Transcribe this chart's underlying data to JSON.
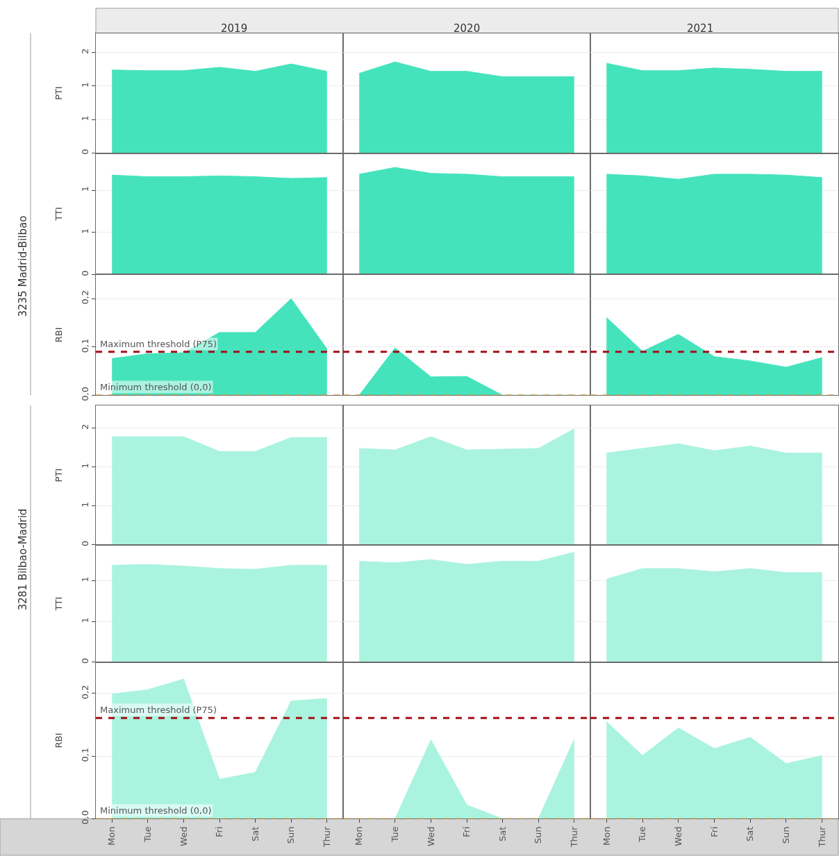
{
  "chart_data": [
    {
      "type": "area",
      "title": "2019",
      "ylabel": "PTI",
      "categories": [
        "Mon",
        "Tue",
        "Wed",
        "Fri",
        "Sat",
        "Sun",
        "Thur"
      ],
      "values": [
        1.24,
        1.23,
        1.23,
        1.28,
        1.22,
        1.33,
        1.22
      ],
      "color": "#45e3bc",
      "ylim": [
        0,
        1.79
      ],
      "yticks": [
        {
          "value": 0,
          "label": "0"
        },
        {
          "value": 0.5,
          "label": "1"
        },
        {
          "value": 1,
          "label": "1"
        },
        {
          "value": 1.5,
          "label": "2"
        }
      ],
      "grid": "y",
      "tick_labels": "y"
    },
    {
      "type": "area",
      "title": "2020",
      "categories": [
        "Mon",
        "Tue",
        "Wed",
        "Fri",
        "Sat",
        "Sun",
        "Thur"
      ],
      "values": [
        1.19,
        1.36,
        1.22,
        1.22,
        1.14,
        1.14,
        1.14
      ],
      "color": "#45e3bc",
      "ylim": [
        0,
        1.79
      ],
      "yticks": [
        {
          "value": 0,
          "label": "0"
        },
        {
          "value": 0.5,
          "label": "1"
        },
        {
          "value": 1,
          "label": "1"
        },
        {
          "value": 1.5,
          "label": "2"
        }
      ],
      "grid": "y",
      "tick_labels": false
    },
    {
      "type": "area",
      "title": "2021",
      "categories": [
        "Mon",
        "Tue",
        "Wed",
        "Fri",
        "Sat",
        "Sun",
        "Thur"
      ],
      "values": [
        1.34,
        1.23,
        1.23,
        1.27,
        1.25,
        1.22,
        1.22
      ],
      "color": "#45e3bc",
      "ylim": [
        0,
        1.79
      ],
      "yticks": [
        {
          "value": 0,
          "label": "0"
        },
        {
          "value": 0.5,
          "label": "1"
        },
        {
          "value": 1,
          "label": "1"
        },
        {
          "value": 1.5,
          "label": "2"
        }
      ],
      "grid": "y",
      "tick_labels": false
    },
    {
      "type": "area",
      "ylabel": "TTI",
      "annotations": [
        "3235 Madrid-Bilbao"
      ],
      "categories": [
        "Mon",
        "Tue",
        "Wed",
        "Fri",
        "Sat",
        "Sun",
        "Thur"
      ],
      "values": [
        1.18,
        1.16,
        1.16,
        1.17,
        1.16,
        1.14,
        1.15
      ],
      "color": "#45e3bc",
      "ylim": [
        0,
        1.44
      ],
      "yticks": [
        {
          "value": 0,
          "label": "0"
        },
        {
          "value": 0.5,
          "label": "1"
        },
        {
          "value": 1,
          "label": "1"
        }
      ],
      "grid": "y",
      "tick_labels": "y"
    },
    {
      "type": "area",
      "categories": [
        "Mon",
        "Tue",
        "Wed",
        "Fri",
        "Sat",
        "Sun",
        "Thur"
      ],
      "values": [
        1.19,
        1.27,
        1.2,
        1.19,
        1.16,
        1.16,
        1.16
      ],
      "color": "#45e3bc",
      "ylim": [
        0,
        1.44
      ],
      "yticks": [
        {
          "value": 0,
          "label": "0"
        },
        {
          "value": 0.5,
          "label": "1"
        },
        {
          "value": 1,
          "label": "1"
        }
      ],
      "grid": "y",
      "tick_labels": false
    },
    {
      "type": "area",
      "categories": [
        "Mon",
        "Tue",
        "Wed",
        "Fri",
        "Sat",
        "Sun",
        "Thur"
      ],
      "values": [
        1.19,
        1.17,
        1.13,
        1.19,
        1.19,
        1.18,
        1.15
      ],
      "color": "#45e3bc",
      "ylim": [
        0,
        1.44
      ],
      "yticks": [
        {
          "value": 0,
          "label": "0"
        },
        {
          "value": 0.5,
          "label": "1"
        },
        {
          "value": 1,
          "label": "1"
        }
      ],
      "grid": "y",
      "tick_labels": false
    },
    {
      "type": "area",
      "ylabel": "RBI",
      "categories": [
        "Mon",
        "Tue",
        "Wed",
        "Fri",
        "Sat",
        "Sun",
        "Thur"
      ],
      "values": [
        0.076,
        0.086,
        0.088,
        0.13,
        0.13,
        0.2,
        0.096
      ],
      "color": "#45e3bc",
      "ylim": [
        0,
        0.25
      ],
      "yticks": [
        {
          "value": 0,
          "label": "0,0"
        },
        {
          "value": 0.1,
          "label": "0,1"
        },
        {
          "value": 0.2,
          "label": "0,2"
        }
      ],
      "grid": "y",
      "tick_labels": "y",
      "ref_lines": [
        {
          "axis": "y",
          "value": 0.09,
          "label": "Maximum threshold (P75)",
          "color": "#a50f15",
          "line_style": "dashed"
        },
        {
          "axis": "y",
          "value": 0,
          "label": "Minimum threshold (0,0)",
          "color": "#d9a441",
          "line_style": "dashed"
        }
      ]
    },
    {
      "type": "area",
      "categories": [
        "Mon",
        "Tue",
        "Wed",
        "Fri",
        "Sat",
        "Sun",
        "Thur"
      ],
      "values": [
        0,
        0.098,
        0.038,
        0.039,
        0,
        0,
        0
      ],
      "color": "#45e3bc",
      "ylim": [
        0,
        0.25
      ],
      "yticks": [
        {
          "value": 0,
          "label": "0,0"
        },
        {
          "value": 0.1,
          "label": "0,1"
        },
        {
          "value": 0.2,
          "label": "0,2"
        }
      ],
      "grid": "y",
      "tick_labels": false,
      "ref_lines": [
        {
          "axis": "y",
          "value": 0.09,
          "color": "#a50f15",
          "line_style": "dashed"
        },
        {
          "axis": "y",
          "value": 0,
          "color": "#d9a441",
          "line_style": "dashed"
        }
      ]
    },
    {
      "type": "area",
      "categories": [
        "Mon",
        "Tue",
        "Wed",
        "Fri",
        "Sat",
        "Sun",
        "Thur"
      ],
      "values": [
        0.161,
        0.091,
        0.126,
        0.08,
        0.071,
        0.058,
        0.078
      ],
      "color": "#45e3bc",
      "ylim": [
        0,
        0.25
      ],
      "yticks": [
        {
          "value": 0,
          "label": "0,0"
        },
        {
          "value": 0.1,
          "label": "0,1"
        },
        {
          "value": 0.2,
          "label": "0,2"
        }
      ],
      "grid": "y",
      "tick_labels": false,
      "ref_lines": [
        {
          "axis": "y",
          "value": 0.09,
          "color": "#a50f15",
          "line_style": "dashed"
        },
        {
          "axis": "y",
          "value": 0,
          "color": "#d9a441",
          "line_style": "dashed"
        }
      ]
    },
    {
      "type": "area",
      "ylabel": "PTI",
      "categories": [
        "Mon",
        "Tue",
        "Wed",
        "Fri",
        "Sat",
        "Sun",
        "Thur"
      ],
      "values": [
        1.39,
        1.39,
        1.39,
        1.2,
        1.2,
        1.38,
        1.38
      ],
      "color": "#aaf3df",
      "ylim": [
        0,
        1.79
      ],
      "yticks": [
        {
          "value": 0,
          "label": "0"
        },
        {
          "value": 0.5,
          "label": "1"
        },
        {
          "value": 1,
          "label": "1"
        },
        {
          "value": 1.5,
          "label": "2"
        }
      ],
      "grid": "y",
      "tick_labels": "y"
    },
    {
      "type": "area",
      "categories": [
        "Mon",
        "Tue",
        "Wed",
        "Fri",
        "Sat",
        "Sun",
        "Thur"
      ],
      "values": [
        1.24,
        1.22,
        1.39,
        1.22,
        1.23,
        1.24,
        1.49
      ],
      "color": "#aaf3df",
      "ylim": [
        0,
        1.79
      ],
      "yticks": [
        {
          "value": 0,
          "label": "0"
        },
        {
          "value": 0.5,
          "label": "1"
        },
        {
          "value": 1,
          "label": "1"
        },
        {
          "value": 1.5,
          "label": "2"
        }
      ],
      "grid": "y",
      "tick_labels": false
    },
    {
      "type": "area",
      "categories": [
        "Mon",
        "Tue",
        "Wed",
        "Fri",
        "Sat",
        "Sun",
        "Thur"
      ],
      "values": [
        1.18,
        1.24,
        1.3,
        1.21,
        1.27,
        1.18,
        1.18
      ],
      "color": "#aaf3df",
      "ylim": [
        0,
        1.79
      ],
      "yticks": [
        {
          "value": 0,
          "label": "0"
        },
        {
          "value": 0.5,
          "label": "1"
        },
        {
          "value": 1,
          "label": "1"
        },
        {
          "value": 1.5,
          "label": "2"
        }
      ],
      "grid": "y",
      "tick_labels": false
    },
    {
      "type": "area",
      "ylabel": "TTI",
      "annotations": [
        "3281 Bilbao-Madrid"
      ],
      "categories": [
        "Mon",
        "Tue",
        "Wed",
        "Fri",
        "Sat",
        "Sun",
        "Thur"
      ],
      "values": [
        1.19,
        1.2,
        1.18,
        1.15,
        1.14,
        1.19,
        1.19
      ],
      "color": "#aaf3df",
      "ylim": [
        0,
        1.44
      ],
      "yticks": [
        {
          "value": 0,
          "label": "0"
        },
        {
          "value": 0.5,
          "label": "1"
        },
        {
          "value": 1,
          "label": "1"
        }
      ],
      "grid": "y",
      "tick_labels": "y"
    },
    {
      "type": "area",
      "categories": [
        "Mon",
        "Tue",
        "Wed",
        "Fri",
        "Sat",
        "Sun",
        "Thur"
      ],
      "values": [
        1.24,
        1.22,
        1.26,
        1.2,
        1.24,
        1.24,
        1.35
      ],
      "color": "#aaf3df",
      "ylim": [
        0,
        1.44
      ],
      "yticks": [
        {
          "value": 0,
          "label": "0"
        },
        {
          "value": 0.5,
          "label": "1"
        },
        {
          "value": 1,
          "label": "1"
        }
      ],
      "grid": "y",
      "tick_labels": false
    },
    {
      "type": "area",
      "categories": [
        "Mon",
        "Tue",
        "Wed",
        "Fri",
        "Sat",
        "Sun",
        "Thur"
      ],
      "values": [
        1.02,
        1.15,
        1.15,
        1.11,
        1.15,
        1.1,
        1.1
      ],
      "color": "#aaf3df",
      "ylim": [
        0,
        1.44
      ],
      "yticks": [
        {
          "value": 0,
          "label": "0"
        },
        {
          "value": 0.5,
          "label": "1"
        },
        {
          "value": 1,
          "label": "1"
        }
      ],
      "grid": "y",
      "tick_labels": false
    },
    {
      "type": "area",
      "ylabel": "RBI",
      "categories": [
        "Mon",
        "Tue",
        "Wed",
        "Fri",
        "Sat",
        "Sun",
        "Thur"
      ],
      "values": [
        0.199,
        0.206,
        0.223,
        0.063,
        0.074,
        0.188,
        0.192
      ],
      "color": "#aaf3df",
      "ylim": [
        0,
        0.25
      ],
      "yticks": [
        {
          "value": 0,
          "label": "0,0"
        },
        {
          "value": 0.1,
          "label": "0,1"
        },
        {
          "value": 0.2,
          "label": "0,2"
        }
      ],
      "grid": "y",
      "ref_lines": [
        {
          "axis": "y",
          "value": 0.161,
          "label": "Maximum threshold (P75)",
          "color": "#a50f15",
          "line_style": "dashed"
        },
        {
          "axis": "y",
          "value": 0,
          "label": "Minimum threshold (0,0)",
          "color": "#d9a441",
          "line_style": "dashed"
        }
      ]
    },
    {
      "type": "area",
      "categories": [
        "Mon",
        "Tue",
        "Wed",
        "Fri",
        "Sat",
        "Sun",
        "Thur"
      ],
      "values": [
        0,
        0,
        0.126,
        0.022,
        0,
        0,
        0.127
      ],
      "color": "#aaf3df",
      "ylim": [
        0,
        0.25
      ],
      "yticks": [
        {
          "value": 0,
          "label": "0,0"
        },
        {
          "value": 0.1,
          "label": "0,1"
        },
        {
          "value": 0.2,
          "label": "0,2"
        }
      ],
      "grid": "y",
      "tick_labels": "x",
      "ref_lines": [
        {
          "axis": "y",
          "value": 0.161,
          "color": "#a50f15",
          "line_style": "dashed"
        },
        {
          "axis": "y",
          "value": 0,
          "color": "#d9a441",
          "line_style": "dashed"
        }
      ]
    },
    {
      "type": "area",
      "categories": [
        "Mon",
        "Tue",
        "Wed",
        "Fri",
        "Sat",
        "Sun",
        "Thur"
      ],
      "values": [
        0.155,
        0.101,
        0.145,
        0.112,
        0.13,
        0.088,
        0.101
      ],
      "color": "#aaf3df",
      "ylim": [
        0,
        0.25
      ],
      "yticks": [
        {
          "value": 0,
          "label": "0,0"
        },
        {
          "value": 0.1,
          "label": "0,1"
        },
        {
          "value": 0.2,
          "label": "0,2"
        }
      ],
      "grid": "y",
      "tick_labels": "x",
      "ref_lines": [
        {
          "axis": "y",
          "value": 0.161,
          "color": "#a50f15",
          "line_style": "dashed"
        },
        {
          "axis": "y",
          "value": 0,
          "color": "#d9a441",
          "line_style": "dashed"
        }
      ]
    }
  ]
}
